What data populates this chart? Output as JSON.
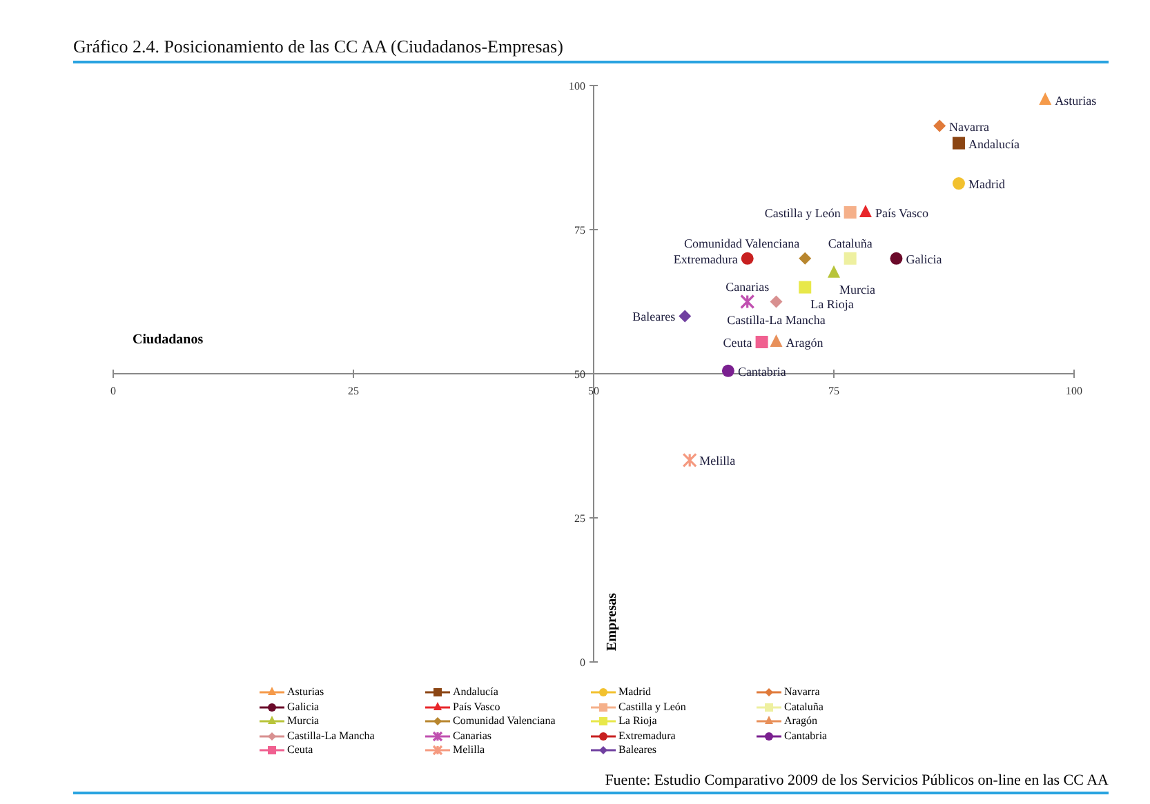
{
  "chart_data": {
    "type": "scatter",
    "title": "Gráfico 2.4. Posicionamiento de las CC AA (Ciudadanos-Empresas)",
    "xlabel": "Ciudadanos",
    "ylabel": "Empresas",
    "annotations": [
      "Fuente: Estudio Comparativo 2009 de los Servicios Públicos on-line en las CC AA"
    ],
    "xlim": [
      0,
      100
    ],
    "ylim": [
      0,
      100
    ],
    "xticks": [
      0,
      25,
      50,
      75,
      100
    ],
    "yticks": [
      0,
      25,
      50,
      75,
      100
    ],
    "legend": "bottom",
    "series": [
      {
        "name": "Asturias",
        "color": "#f59a4a",
        "marker": "triangle",
        "x": [
          97
        ],
        "values": [
          97.5
        ]
      },
      {
        "name": "Andalucía",
        "color": "#8b4513",
        "marker": "square",
        "x": [
          88
        ],
        "values": [
          90
        ]
      },
      {
        "name": "Madrid",
        "color": "#f2c12e",
        "marker": "circle",
        "x": [
          88
        ],
        "values": [
          83
        ]
      },
      {
        "name": "Navarra",
        "color": "#e07a3a",
        "marker": "diamond",
        "x": [
          86
        ],
        "values": [
          93
        ]
      },
      {
        "name": "Galicia",
        "color": "#6b0a2a",
        "marker": "circle",
        "x": [
          81.5
        ],
        "values": [
          70
        ]
      },
      {
        "name": "País Vasco",
        "color": "#e8262a",
        "marker": "triangle",
        "x": [
          78.3
        ],
        "values": [
          78
        ]
      },
      {
        "name": "Castilla y León",
        "color": "#f5b08a",
        "marker": "square",
        "x": [
          76.7
        ],
        "values": [
          78
        ]
      },
      {
        "name": "Cataluña",
        "color": "#eef0a0",
        "marker": "square",
        "x": [
          76.7
        ],
        "values": [
          70
        ]
      },
      {
        "name": "Murcia",
        "color": "#b8c43a",
        "marker": "triangle",
        "x": [
          75
        ],
        "values": [
          67.5
        ]
      },
      {
        "name": "Comunidad Valenciana",
        "color": "#b8862e",
        "marker": "diamond",
        "x": [
          72
        ],
        "values": [
          70
        ]
      },
      {
        "name": "La Rioja",
        "color": "#e8e84a",
        "marker": "square",
        "x": [
          72
        ],
        "values": [
          65
        ]
      },
      {
        "name": "Aragón",
        "color": "#e8905a",
        "marker": "triangle",
        "x": [
          69
        ],
        "values": [
          55.5
        ]
      },
      {
        "name": "Castilla-La Mancha",
        "color": "#d89090",
        "marker": "diamond",
        "x": [
          69
        ],
        "values": [
          62.5
        ]
      },
      {
        "name": "Canarias",
        "color": "#c050b0",
        "marker": "cross",
        "x": [
          66
        ],
        "values": [
          62.5
        ]
      },
      {
        "name": "Extremadura",
        "color": "#c82020",
        "marker": "circle",
        "x": [
          66
        ],
        "values": [
          70
        ]
      },
      {
        "name": "Cantabria",
        "color": "#7a2090",
        "marker": "circle",
        "x": [
          64
        ],
        "values": [
          50.5
        ]
      },
      {
        "name": "Ceuta",
        "color": "#f06090",
        "marker": "square",
        "x": [
          67.5
        ],
        "values": [
          55.5
        ]
      },
      {
        "name": "Melilla",
        "color": "#f59a80",
        "marker": "cross",
        "x": [
          60
        ],
        "values": [
          35
        ]
      },
      {
        "name": "Baleares",
        "color": "#7040a0",
        "marker": "diamond",
        "x": [
          59.5
        ],
        "values": [
          60
        ]
      }
    ]
  }
}
